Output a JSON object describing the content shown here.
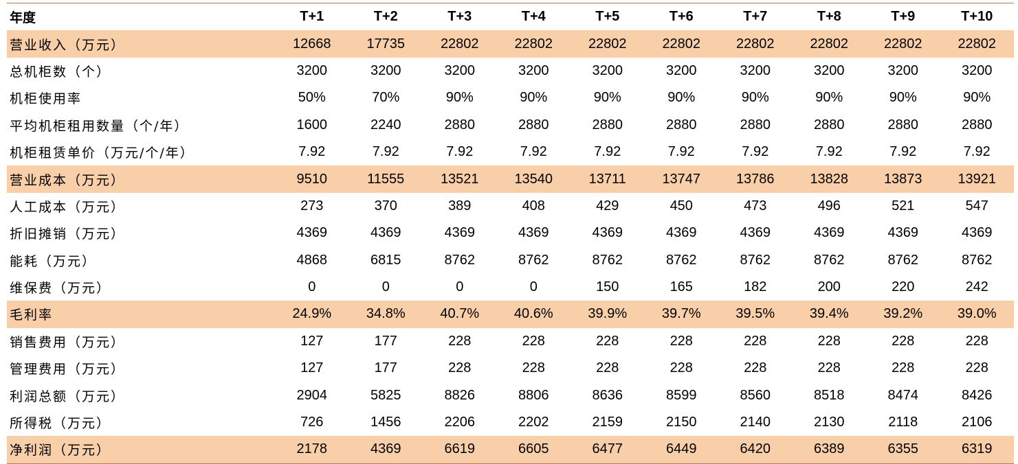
{
  "table": {
    "header_label": "年度",
    "columns": [
      "T+1",
      "T+2",
      "T+3",
      "T+4",
      "T+5",
      "T+6",
      "T+7",
      "T+8",
      "T+9",
      "T+10"
    ],
    "highlight_color": "#f9cfaa",
    "rows": [
      {
        "label": "营业收入（万元）",
        "highlight": true,
        "values": [
          "12668",
          "17735",
          "22802",
          "22802",
          "22802",
          "22802",
          "22802",
          "22802",
          "22802",
          "22802"
        ]
      },
      {
        "label": "总机柜数（个）",
        "highlight": false,
        "values": [
          "3200",
          "3200",
          "3200",
          "3200",
          "3200",
          "3200",
          "3200",
          "3200",
          "3200",
          "3200"
        ]
      },
      {
        "label": "机柜使用率",
        "highlight": false,
        "values": [
          "50%",
          "70%",
          "90%",
          "90%",
          "90%",
          "90%",
          "90%",
          "90%",
          "90%",
          "90%"
        ]
      },
      {
        "label": "平均机柜租用数量（个/年）",
        "highlight": false,
        "values": [
          "1600",
          "2240",
          "2880",
          "2880",
          "2880",
          "2880",
          "2880",
          "2880",
          "2880",
          "2880"
        ]
      },
      {
        "label": "机柜租赁单价（万元/个/年）",
        "highlight": false,
        "values": [
          "7.92",
          "7.92",
          "7.92",
          "7.92",
          "7.92",
          "7.92",
          "7.92",
          "7.92",
          "7.92",
          "7.92"
        ]
      },
      {
        "label": "营业成本（万元）",
        "highlight": true,
        "values": [
          "9510",
          "11555",
          "13521",
          "13540",
          "13711",
          "13747",
          "13786",
          "13828",
          "13873",
          "13921"
        ]
      },
      {
        "label": "人工成本（万元）",
        "highlight": false,
        "values": [
          "273",
          "370",
          "389",
          "408",
          "429",
          "450",
          "473",
          "496",
          "521",
          "547"
        ]
      },
      {
        "label": "折旧摊销（万元）",
        "highlight": false,
        "values": [
          "4369",
          "4369",
          "4369",
          "4369",
          "4369",
          "4369",
          "4369",
          "4369",
          "4369",
          "4369"
        ]
      },
      {
        "label": "能耗（万元）",
        "highlight": false,
        "values": [
          "4868",
          "6815",
          "8762",
          "8762",
          "8762",
          "8762",
          "8762",
          "8762",
          "8762",
          "8762"
        ]
      },
      {
        "label": "维保费（万元）",
        "highlight": false,
        "values": [
          "0",
          "0",
          "0",
          "0",
          "150",
          "165",
          "182",
          "200",
          "220",
          "242"
        ]
      },
      {
        "label": "毛利率",
        "highlight": true,
        "values": [
          "24.9%",
          "34.8%",
          "40.7%",
          "40.6%",
          "39.9%",
          "39.7%",
          "39.5%",
          "39.4%",
          "39.2%",
          "39.0%"
        ]
      },
      {
        "label": "销售费用（万元）",
        "highlight": false,
        "values": [
          "127",
          "177",
          "228",
          "228",
          "228",
          "228",
          "228",
          "228",
          "228",
          "228"
        ]
      },
      {
        "label": "管理费用（万元）",
        "highlight": false,
        "values": [
          "127",
          "177",
          "228",
          "228",
          "228",
          "228",
          "228",
          "228",
          "228",
          "228"
        ]
      },
      {
        "label": "利润总额（万元）",
        "highlight": false,
        "values": [
          "2904",
          "5825",
          "8826",
          "8806",
          "8636",
          "8599",
          "8560",
          "8518",
          "8474",
          "8426"
        ]
      },
      {
        "label": "所得税（万元）",
        "highlight": false,
        "values": [
          "726",
          "1456",
          "2206",
          "2202",
          "2159",
          "2150",
          "2140",
          "2130",
          "2118",
          "2106"
        ]
      },
      {
        "label": "净利润（万元）",
        "highlight": true,
        "values": [
          "2178",
          "4369",
          "6619",
          "6605",
          "6477",
          "6449",
          "6420",
          "6389",
          "6355",
          "6319"
        ]
      }
    ]
  }
}
